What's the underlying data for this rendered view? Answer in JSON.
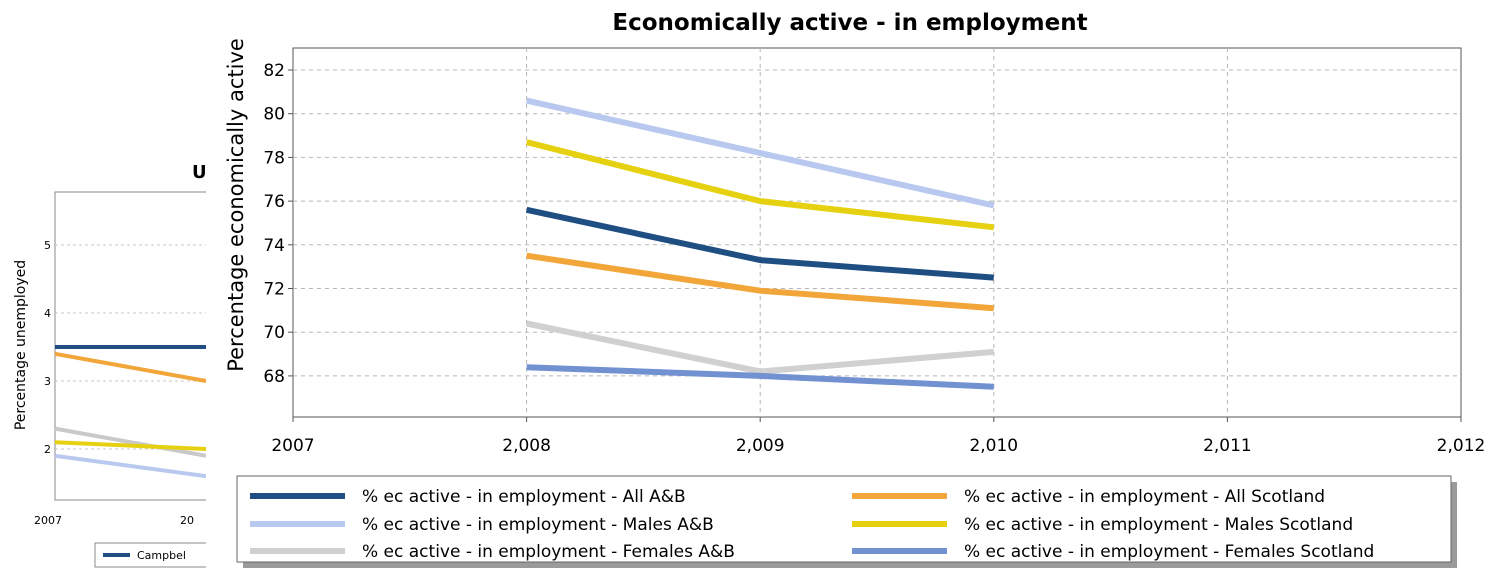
{
  "background_chart": {
    "title_fragment": "U",
    "ylabel": "Percentage unemployed",
    "y_ticks": [
      "2",
      "3",
      "4",
      "5"
    ],
    "x_ticks": [
      "2007",
      "20"
    ],
    "legend_fragment": "Campbel",
    "series": [
      {
        "color": "#1f4e82",
        "values": [
          3.5,
          3.5
        ]
      },
      {
        "color": "#f2a63a",
        "values": [
          3.4,
          3.0
        ]
      },
      {
        "color": "#c9c9c9",
        "values": [
          2.3,
          1.9
        ]
      },
      {
        "color": "#e5d10f",
        "values": [
          2.1,
          2.0
        ]
      },
      {
        "color": "#b8c8ee",
        "values": [
          1.9,
          1.6
        ]
      }
    ]
  },
  "chart_data": {
    "type": "line",
    "title": "Economically active - in employment",
    "xlabel": "",
    "ylabel": "Percentage economically active",
    "xlim": [
      2007,
      2012
    ],
    "ylim": [
      66,
      83
    ],
    "x_ticks": [
      2007,
      2008,
      2009,
      2010,
      2011,
      2012
    ],
    "x_tick_labels": [
      "2007",
      "2,008",
      "2,009",
      "2,010",
      "2,011",
      "2,012"
    ],
    "y_ticks": [
      68,
      70,
      72,
      74,
      76,
      78,
      80,
      82
    ],
    "grid": true,
    "legend_position": "bottom",
    "x": [
      2008,
      2009,
      2010
    ],
    "series": [
      {
        "name": "% ec active - in employment - All A&B",
        "color": "#1f4e82",
        "values": [
          75.6,
          73.3,
          72.5
        ]
      },
      {
        "name": "% ec active - in employment - Males A&B",
        "color": "#b8c8ee",
        "values": [
          80.6,
          78.2,
          75.8
        ]
      },
      {
        "name": "% ec active - in employment - Females A&B",
        "color": "#d0d0d0",
        "values": [
          70.4,
          68.2,
          69.1
        ]
      },
      {
        "name": "% ec active - in employment - All Scotland",
        "color": "#f2a63a",
        "values": [
          73.5,
          71.9,
          71.1
        ]
      },
      {
        "name": "% ec active - in employment - Males Scotland",
        "color": "#e5d10f",
        "values": [
          78.7,
          76.0,
          74.8
        ]
      },
      {
        "name": "% ec active - in employment - Females Scotland",
        "color": "#7191d1",
        "values": [
          68.4,
          68.0,
          67.5
        ]
      }
    ]
  }
}
